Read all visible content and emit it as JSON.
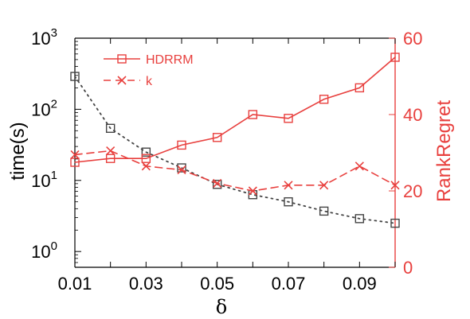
{
  "chart_data": {
    "type": "line",
    "x": [
      0.01,
      0.02,
      0.03,
      0.04,
      0.05,
      0.06,
      0.07,
      0.08,
      0.09,
      0.1
    ],
    "xlabel": "δ",
    "xlim": [
      0.01,
      0.1
    ],
    "xticks": [
      0.01,
      0.03,
      0.05,
      0.07,
      0.09
    ],
    "xtick_labels": [
      "0.01",
      "0.03",
      "0.05",
      "0.07",
      "0.09"
    ],
    "ylabel_left": "time(s)",
    "ylabel_right": "RankRegret",
    "yleft_scale": "log",
    "yleft_lim": [
      0.6,
      1000
    ],
    "yleft_ticks": [
      1,
      10,
      100,
      1000
    ],
    "yleft_tick_bases": [
      "10",
      "10",
      "10",
      "10"
    ],
    "yleft_tick_exps": [
      "0",
      "1",
      "2",
      "3"
    ],
    "yright_lim": [
      0,
      60
    ],
    "yright_ticks": [
      0,
      20,
      40,
      60
    ],
    "yright_tick_labels": [
      "0",
      "20",
      "40",
      "60"
    ],
    "grid": false,
    "legend_position": "top-left",
    "colors": {
      "red": "#e8403e",
      "gray": "#444444",
      "axis": "#000000"
    },
    "series": [
      {
        "name": "",
        "axis": "left",
        "style": "dotted",
        "marker": "square",
        "color": "#444444",
        "values": [
          290,
          54,
          25,
          15,
          8.8,
          6.3,
          5.0,
          3.7,
          2.9,
          2.5
        ]
      },
      {
        "name": "HDRRM",
        "axis": "right",
        "style": "solid",
        "marker": "square",
        "color": "#e8403e",
        "values": [
          27.5,
          28.5,
          28.5,
          32,
          34,
          40,
          39,
          44,
          47,
          55
        ]
      },
      {
        "name": "k",
        "axis": "right",
        "style": "dashed",
        "marker": "x",
        "color": "#e8403e",
        "values": [
          29.5,
          30.5,
          26.5,
          25.5,
          22,
          20,
          21.5,
          21.5,
          26.5,
          21.5
        ]
      }
    ]
  }
}
